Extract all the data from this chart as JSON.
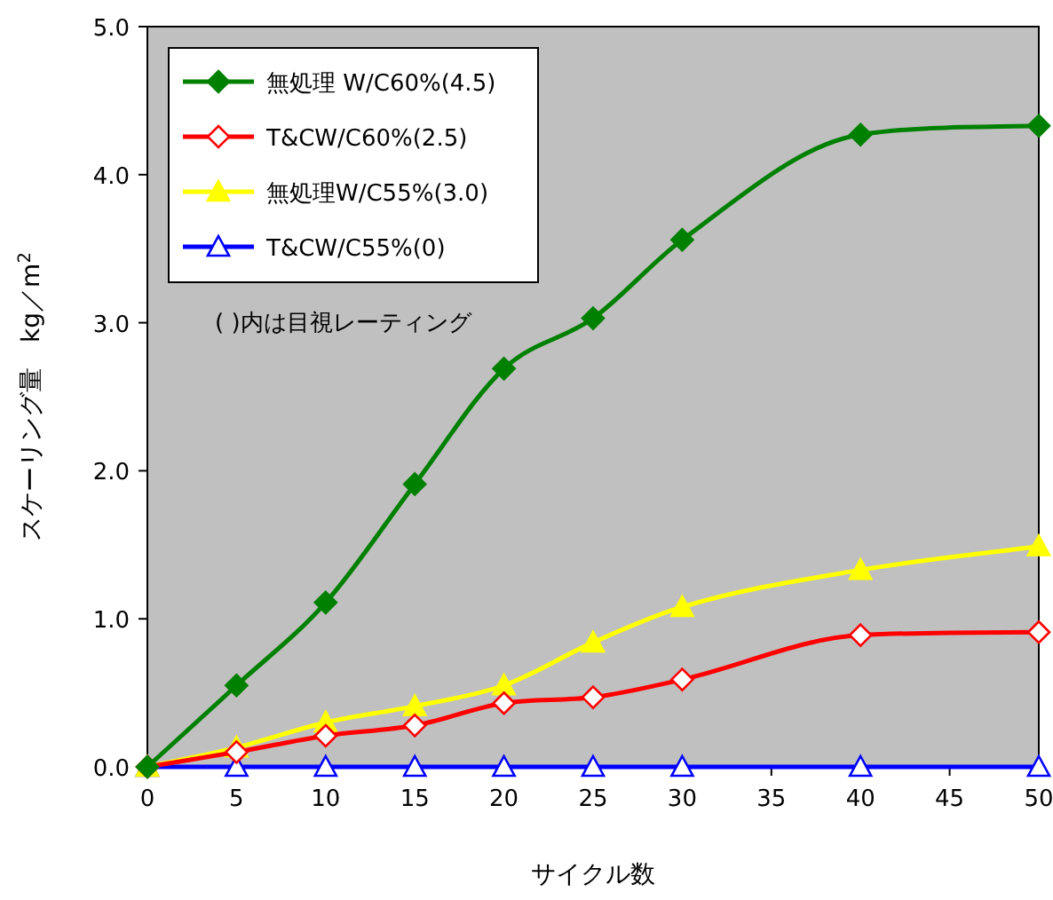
{
  "chart_data": {
    "type": "line",
    "xlabel": "サイクル数",
    "ylabel": "スケーリング量　kg／m$^{2}$",
    "x": [
      0,
      5,
      10,
      15,
      20,
      25,
      30,
      40,
      50
    ],
    "xlim": [
      0,
      50
    ],
    "xticks": [
      0,
      5,
      10,
      15,
      20,
      25,
      30,
      35,
      40,
      45,
      50
    ],
    "ylim": [
      0,
      5
    ],
    "yticks": [
      {
        "value": 0,
        "label": "0.0"
      },
      {
        "value": 1,
        "label": "1.0"
      },
      {
        "value": 2,
        "label": "2.0"
      },
      {
        "value": 3,
        "label": "3.0"
      },
      {
        "value": 4,
        "label": "4.0"
      },
      {
        "value": 5,
        "label": "5.0"
      }
    ],
    "grid": false,
    "legend": "top left",
    "annotations": [
      "( )内は目視レーティング"
    ],
    "series": [
      {
        "name": "無処理 W/C60%(4.5)",
        "color": "#008000",
        "marker": "diamond",
        "values": [
          0,
          0.55,
          1.11,
          1.91,
          2.69,
          3.03,
          3.56,
          4.27,
          4.33
        ]
      },
      {
        "name": "T&CW/C60%(2.5)",
        "color": "#ff0000",
        "marker": "diamond",
        "values": [
          0,
          0.1,
          0.21,
          0.28,
          0.43,
          0.47,
          0.59,
          0.89,
          0.91
        ]
      },
      {
        "name": "無処理W/C55%(3.0)",
        "color": "#ffff00",
        "marker": "triangle",
        "values": [
          0,
          0.13,
          0.3,
          0.41,
          0.55,
          0.84,
          1.08,
          1.33,
          1.49
        ]
      },
      {
        "name": "T&CW/C55%(0)",
        "color": "#0000ff",
        "marker": "triangle",
        "values": [
          0,
          0,
          0,
          0,
          0,
          0,
          0,
          0,
          0
        ]
      }
    ]
  }
}
